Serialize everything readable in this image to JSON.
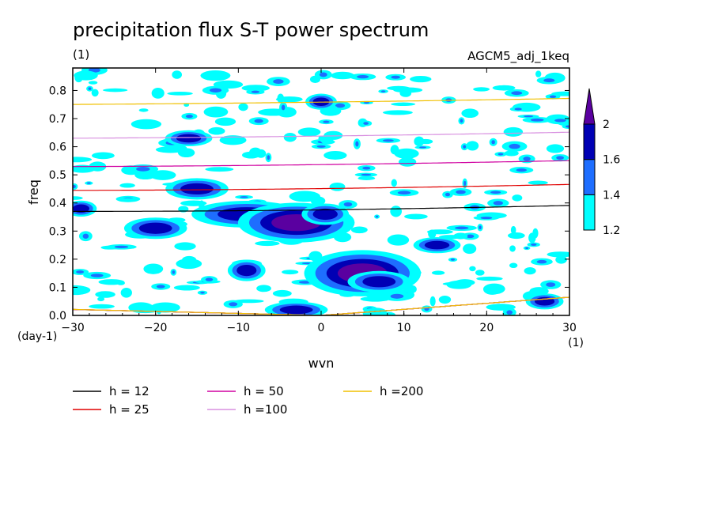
{
  "chart_data": {
    "type": "heatmap",
    "title": "precipitation flux S-T power spectrum",
    "subtitle_left": "(1)",
    "subtitle_right": "AGCM5_adj_1keq",
    "xlabel": "wvn",
    "ylabel": "freq",
    "x_unit": "(1)",
    "y_unit": "(day-1)",
    "xlim": [
      -30,
      30
    ],
    "ylim": [
      0,
      0.88
    ],
    "xticks": [
      -30,
      -20,
      -10,
      0,
      10,
      20,
      30
    ],
    "yticks": [
      0.0,
      0.1,
      0.2,
      0.3,
      0.4,
      0.5,
      0.6,
      0.7,
      0.8
    ],
    "colorbar": {
      "levels": [
        1.2,
        1.4,
        1.6,
        2
      ],
      "colors": [
        "#00ffff",
        "#1e6eff",
        "#0000b4",
        "#5a00a0"
      ]
    },
    "contour_regions": [
      {
        "x": -9,
        "y": 0.36,
        "rx": 3.5,
        "ry": 0.025,
        "level": 1.6
      },
      {
        "x": -3,
        "y": 0.33,
        "rx": 3,
        "ry": 0.03,
        "level": 2
      },
      {
        "x": 0.5,
        "y": 0.36,
        "rx": 1.5,
        "ry": 0.02,
        "level": 1.6
      },
      {
        "x": -15,
        "y": 0.45,
        "rx": 2,
        "ry": 0.02,
        "level": 1.6
      },
      {
        "x": 5,
        "y": 0.15,
        "rx": 3,
        "ry": 0.035,
        "level": 2
      },
      {
        "x": 7,
        "y": 0.12,
        "rx": 2,
        "ry": 0.02,
        "level": 1.6
      },
      {
        "x": -9,
        "y": 0.16,
        "rx": 1.2,
        "ry": 0.02,
        "level": 1.6
      },
      {
        "x": -20,
        "y": 0.31,
        "rx": 2,
        "ry": 0.02,
        "level": 1.6
      },
      {
        "x": -16,
        "y": 0.63,
        "rx": 1.5,
        "ry": 0.015,
        "level": 1.6
      },
      {
        "x": 0,
        "y": 0.76,
        "rx": 1,
        "ry": 0.015,
        "level": 1.6
      },
      {
        "x": -3,
        "y": 0.02,
        "rx": 2,
        "ry": 0.015,
        "level": 1.6
      },
      {
        "x": 14,
        "y": 0.25,
        "rx": 1.5,
        "ry": 0.015,
        "level": 1.6
      },
      {
        "x": 27,
        "y": 0.05,
        "rx": 1.2,
        "ry": 0.015,
        "level": 1.6
      },
      {
        "x": -29,
        "y": 0.38,
        "rx": 1,
        "ry": 0.015,
        "level": 1.6
      }
    ],
    "dispersion_curves": [
      {
        "name": "h = 12",
        "h": 12,
        "color": "#000000"
      },
      {
        "name": "h = 25",
        "h": 25,
        "color": "#e00000"
      },
      {
        "name": "h = 50",
        "h": 50,
        "color": "#d000a0"
      },
      {
        "name": "h =100",
        "h": 100,
        "color": "#d890e0"
      },
      {
        "name": "h =200",
        "h": 200,
        "color": "#f0c000"
      }
    ]
  }
}
